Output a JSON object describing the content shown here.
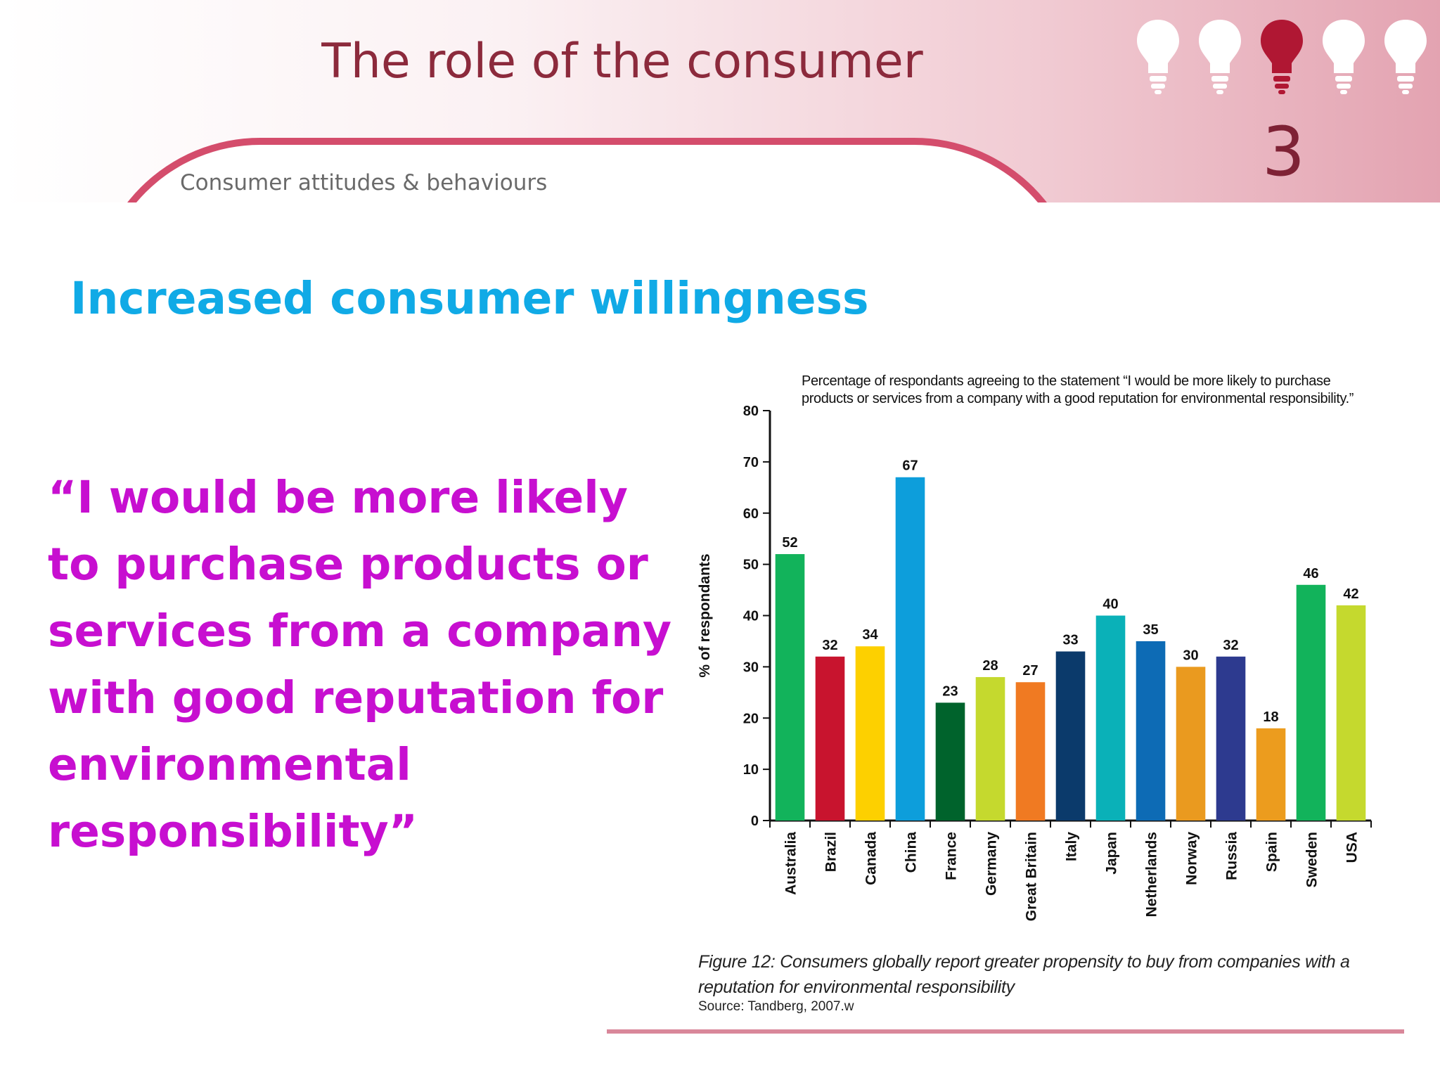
{
  "header": {
    "title": "The role of the consumer",
    "subtitle": "Consumer attitudes & behaviours",
    "section_number": "3",
    "bulb_icons": [
      "lightbulb-icon",
      "lightbulb-icon",
      "lightbulb-icon",
      "lightbulb-icon",
      "lightbulb-icon"
    ],
    "active_bulb_index": 2,
    "colors": {
      "accent": "#d44d6c",
      "title": "#8c2a3c",
      "bulb_inactive": "#ffffff",
      "bulb_active": "#b01733"
    }
  },
  "heading": "Increased consumer willingness",
  "quote": "“I would be more likely to purchase products or services from a company with good reputation for environmental responsibility”",
  "chart_data": {
    "type": "bar",
    "title": "Percentage of respondants agreeing to the statement “I would be more likely to purchase products or services from a company with a good reputation for environmental responsibility.”",
    "ylabel": "% of respondants",
    "xlabel": "",
    "ylim": [
      0,
      80
    ],
    "yticks": [
      0,
      10,
      20,
      30,
      40,
      50,
      60,
      70,
      80
    ],
    "grid": false,
    "categories": [
      "Australia",
      "Brazil",
      "Canada",
      "China",
      "France",
      "Germany",
      "Great Britain",
      "Italy",
      "Japan",
      "Netherlands",
      "Norway",
      "Russia",
      "Spain",
      "Sweden",
      "USA"
    ],
    "values": [
      52,
      32,
      34,
      67,
      23,
      28,
      27,
      33,
      40,
      35,
      30,
      32,
      18,
      46,
      42
    ],
    "data_labels": [
      "52",
      "32",
      "34",
      "67",
      "23",
      "28",
      "27",
      "33",
      "40",
      "35",
      "30",
      "32",
      "18",
      "46",
      "42"
    ],
    "colors": [
      "#12b35b",
      "#c8142e",
      "#fdd000",
      "#0d9edb",
      "#00632c",
      "#c5d92e",
      "#f07a22",
      "#0b3a6b",
      "#0ab1b8",
      "#0d6bb5",
      "#ea9a1f",
      "#2d3a8f",
      "#ec9c1e",
      "#12b35b",
      "#c5d92e"
    ]
  },
  "caption": "Figure 12: Consumers globally report greater propensity to buy from companies with a reputation for environmental responsibility",
  "source": "Source: Tandberg, 2007.w"
}
